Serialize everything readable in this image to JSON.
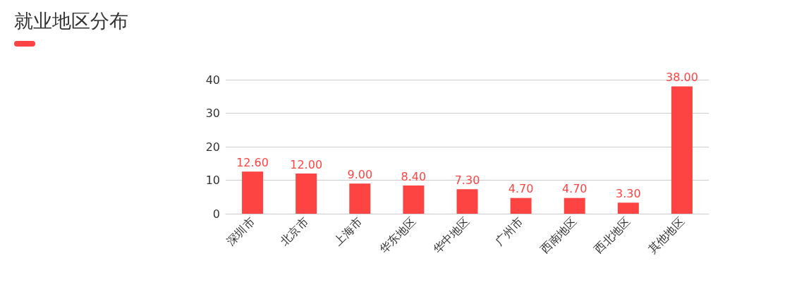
{
  "chart_data": {
    "type": "bar",
    "title": "就业地区分布",
    "categories": [
      "深圳市",
      "北京市",
      "上海市",
      "华东地区",
      "华中地区",
      "广州市",
      "西南地区",
      "西北地区",
      "其他地区"
    ],
    "values": [
      12.6,
      12.0,
      9.0,
      8.4,
      7.3,
      4.7,
      4.7,
      3.3,
      38.0
    ],
    "value_labels": [
      "12.60",
      "12.00",
      "9.00",
      "8.40",
      "7.30",
      "4.70",
      "4.70",
      "3.30",
      "38.00"
    ],
    "color": "#fe4443",
    "ylim": [
      0,
      40
    ],
    "yticks": [
      0,
      10,
      20,
      30,
      40
    ],
    "grid": "y"
  }
}
